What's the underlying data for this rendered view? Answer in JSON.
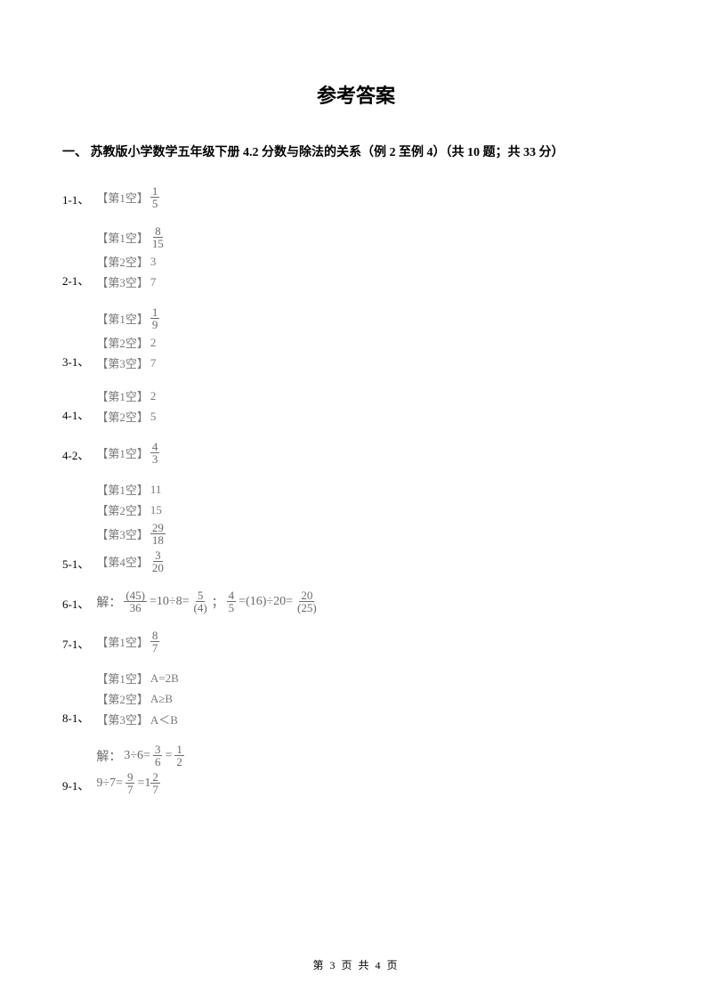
{
  "title": "参考答案",
  "section": "一、 苏教版小学数学五年级下册 4.2 分数与除法的关系（例 2 至例 4）（共 10 题；共 33 分）",
  "colors": {
    "text_primary": "#000000",
    "text_answer": "#7a7a7a",
    "background": "#ffffff"
  },
  "font_sizes": {
    "title": 22,
    "section": 14,
    "body": 13
  },
  "answers": [
    {
      "label": "1-1、",
      "blanks": [
        {
          "tag": "【第1空】",
          "type": "frac",
          "num": "1",
          "den": "5"
        }
      ]
    },
    {
      "label": "2-1、",
      "blanks": [
        {
          "tag": "【第1空】",
          "type": "frac",
          "num": "8",
          "den": "15"
        },
        {
          "tag": "【第2空】",
          "type": "text",
          "value": "3"
        },
        {
          "tag": "【第3空】",
          "type": "text",
          "value": "7"
        }
      ]
    },
    {
      "label": "3-1、",
      "blanks": [
        {
          "tag": "【第1空】",
          "type": "frac",
          "num": "1",
          "den": "9"
        },
        {
          "tag": "【第2空】",
          "type": "text",
          "value": "2"
        },
        {
          "tag": "【第3空】",
          "type": "text",
          "value": "7"
        }
      ]
    },
    {
      "label": "4-1、",
      "blanks": [
        {
          "tag": "【第1空】",
          "type": "text",
          "value": "2"
        },
        {
          "tag": "【第2空】",
          "type": "text",
          "value": "5"
        }
      ]
    },
    {
      "label": "4-2、",
      "blanks": [
        {
          "tag": "【第1空】",
          "type": "frac",
          "num": "4",
          "den": "3"
        }
      ]
    },
    {
      "label": "5-1、",
      "blanks": [
        {
          "tag": "【第1空】",
          "type": "text",
          "value": "11"
        },
        {
          "tag": "【第2空】",
          "type": "text",
          "value": "15"
        },
        {
          "tag": "【第3空】",
          "type": "frac",
          "num": "29",
          "den": "18"
        },
        {
          "tag": "【第4空】",
          "type": "frac",
          "num": "3",
          "den": "20"
        }
      ]
    },
    {
      "label": "6-1、",
      "equation6": {
        "prefix": "解：",
        "part1_frac": {
          "num": "(45)",
          "den": "36"
        },
        "eq1_text": "=10÷8=",
        "part1b_frac": {
          "num": "5",
          "den": "(4)"
        },
        "sep": " ；",
        "part2_frac": {
          "num": "4",
          "den": "5"
        },
        "eq2_text": "=(16)÷20=",
        "part2b_frac": {
          "num": "20",
          "den": "(25)"
        }
      }
    },
    {
      "label": "7-1、",
      "blanks": [
        {
          "tag": "【第1空】",
          "type": "frac",
          "num": "8",
          "den": "7"
        }
      ]
    },
    {
      "label": "8-1、",
      "blanks": [
        {
          "tag": "【第1空】",
          "type": "text",
          "value": "A=2B"
        },
        {
          "tag": "【第2空】",
          "type": "text",
          "value": "A≥B"
        },
        {
          "tag": "【第3空】",
          "type": "text",
          "value": "A＜B"
        }
      ]
    },
    {
      "label": "9-1、",
      "equation9": {
        "prefix": "解：",
        "line1": {
          "a": "3÷6=",
          "frac1": {
            "num": "3",
            "den": "6"
          },
          "mid": "=",
          "frac2": {
            "num": "1",
            "den": "2"
          }
        },
        "line2": {
          "a": "9÷7=",
          "frac1": {
            "num": "9",
            "den": "7"
          },
          "mid": "=1",
          "frac2": {
            "num": "2",
            "den": "7"
          }
        }
      }
    }
  ],
  "footer": "第 3 页 共 4 页"
}
